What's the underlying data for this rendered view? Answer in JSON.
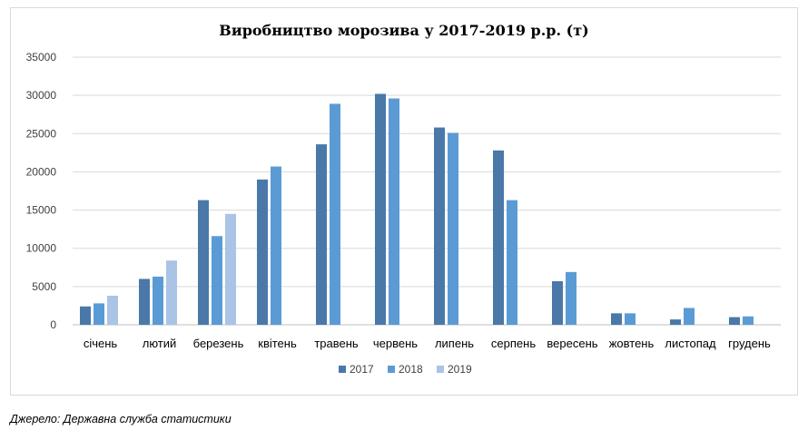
{
  "chart_data": {
    "type": "bar",
    "title": "Виробництво морозива у 2017-2019 р.р. (т)",
    "categories": [
      "січень",
      "лютий",
      "березень",
      "квітень",
      "травень",
      "червень",
      "липень",
      "серпень",
      "вересень",
      "жовтень",
      "листопад",
      "грудень"
    ],
    "series": [
      {
        "name": "2017",
        "color": "#4a78a9",
        "values": [
          2400,
          6000,
          16300,
          19000,
          23600,
          30200,
          25800,
          22800,
          5700,
          1500,
          700,
          1000
        ]
      },
      {
        "name": "2018",
        "color": "#5b9bd5",
        "values": [
          2800,
          6300,
          11600,
          20700,
          28900,
          29600,
          25100,
          16300,
          6900,
          1500,
          2200,
          1100
        ]
      },
      {
        "name": "2019",
        "color": "#a9c4e4",
        "values": [
          3800,
          8400,
          14500,
          null,
          null,
          null,
          null,
          null,
          null,
          null,
          null,
          null
        ]
      }
    ],
    "ylim": [
      0,
      35000
    ],
    "yticks": [
      0,
      5000,
      10000,
      15000,
      20000,
      25000,
      30000,
      35000
    ],
    "grid": true,
    "legend_position": "bottom"
  },
  "source": "Джерело: Державна служба статистики"
}
